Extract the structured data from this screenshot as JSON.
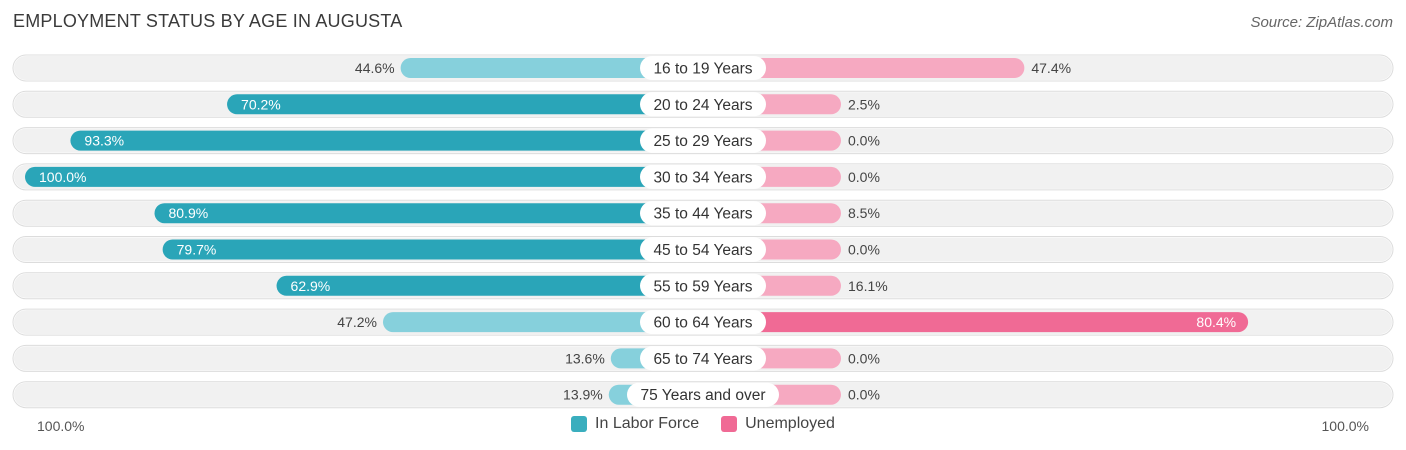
{
  "title": "EMPLOYMENT STATUS BY AGE IN AUGUSTA",
  "source": "Source: ZipAtlas.com",
  "colors": {
    "labor_dark": "#2aa5b8",
    "labor_light": "#86d0dc",
    "unemp_dark": "#f06a95",
    "unemp_light": "#f6a9c1",
    "row_bg": "#f1f1f1"
  },
  "axis": {
    "left_label": "100.0%",
    "right_label": "100.0%"
  },
  "legend": [
    {
      "label": "In Labor Force",
      "color": "#3aaebe"
    },
    {
      "label": "Unemployed",
      "color": "#f06a95"
    }
  ],
  "chart_data": {
    "type": "bar",
    "orientation": "diverging-horizontal",
    "title": "EMPLOYMENT STATUS BY AGE IN AUGUSTA",
    "categories": [
      "16 to 19 Years",
      "20 to 24 Years",
      "25 to 29 Years",
      "30 to 34 Years",
      "35 to 44 Years",
      "45 to 54 Years",
      "55 to 59 Years",
      "60 to 64 Years",
      "65 to 74 Years",
      "75 Years and over"
    ],
    "series": [
      {
        "name": "In Labor Force",
        "values": [
          44.6,
          70.2,
          93.3,
          100.0,
          80.9,
          79.7,
          62.9,
          47.2,
          13.6,
          13.9
        ],
        "labels": [
          "44.6%",
          "70.2%",
          "93.3%",
          "100.0%",
          "80.9%",
          "79.7%",
          "62.9%",
          "47.2%",
          "13.6%",
          "13.9%"
        ]
      },
      {
        "name": "Unemployed",
        "values": [
          47.4,
          2.5,
          0.0,
          0.0,
          8.5,
          0.0,
          16.1,
          80.4,
          0.0,
          0.0
        ],
        "labels": [
          "47.4%",
          "2.5%",
          "0.0%",
          "0.0%",
          "8.5%",
          "0.0%",
          "16.1%",
          "80.4%",
          "0.0%",
          "0.0%"
        ]
      }
    ],
    "xlim": [
      0,
      100
    ],
    "legend_position": "bottom-center"
  }
}
